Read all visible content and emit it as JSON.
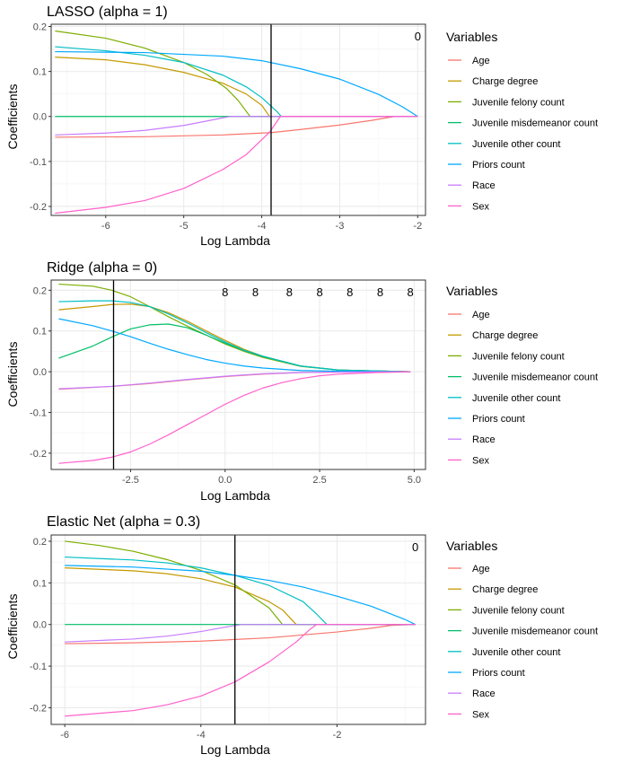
{
  "legend_title": "Variables",
  "variables": [
    "Age",
    "Charge degree",
    "Juvenile felony count",
    "Juvenile misdemeanor count",
    "Juvenile other count",
    "Priors count",
    "Race",
    "Sex"
  ],
  "colors": [
    "#F8766D",
    "#C49A00",
    "#7CAE00",
    "#00BE67",
    "#00BFC4",
    "#00A9FF",
    "#C77CFF",
    "#FF61CC"
  ],
  "chart_data": [
    {
      "type": "line",
      "title": "LASSO (alpha = 1)",
      "xlabel": "Log Lambda",
      "ylabel": "Coefficients",
      "xlim": [
        -6.7,
        -1.9
      ],
      "ylim": [
        -0.22,
        0.205
      ],
      "xticks": [
        -6,
        -5,
        -4,
        -3,
        -2
      ],
      "xtick_labels": [
        "-6",
        "-5",
        "-4",
        "-3",
        "-2"
      ],
      "yticks": [
        -0.2,
        -0.1,
        0.0,
        0.1,
        0.2
      ],
      "ytick_labels": [
        "-0.2",
        "-0.1",
        "0.0",
        "0.1",
        "0.2"
      ],
      "vline": -3.88,
      "top_x": [
        -2.0
      ],
      "top_labels": [
        "0"
      ],
      "series": [
        {
          "name": "Age",
          "x": [
            -6.65,
            -5.5,
            -4.5,
            -3.88,
            -3.5,
            -3.0,
            -2.6,
            -2.3,
            -2.0
          ],
          "values": [
            -0.046,
            -0.045,
            -0.041,
            -0.036,
            -0.029,
            -0.019,
            -0.009,
            0.0,
            0.0
          ]
        },
        {
          "name": "Charge degree",
          "x": [
            -6.65,
            -6.0,
            -5.5,
            -5.0,
            -4.5,
            -4.2,
            -4.0,
            -3.9,
            -2.0
          ],
          "values": [
            0.132,
            0.126,
            0.115,
            0.098,
            0.074,
            0.05,
            0.025,
            0.0,
            0.0
          ]
        },
        {
          "name": "Juvenile felony count",
          "x": [
            -6.65,
            -6.0,
            -5.5,
            -5.0,
            -4.7,
            -4.45,
            -4.3,
            -4.15,
            -2.0
          ],
          "values": [
            0.19,
            0.174,
            0.152,
            0.12,
            0.093,
            0.062,
            0.035,
            0.0,
            0.0
          ]
        },
        {
          "name": "Juvenile misdemeanor count",
          "x": [
            -6.65,
            -4.0,
            -2.0
          ],
          "values": [
            0.0,
            0.0,
            0.0
          ]
        },
        {
          "name": "Juvenile other count",
          "x": [
            -6.65,
            -6.0,
            -5.5,
            -5.0,
            -4.5,
            -4.2,
            -4.0,
            -3.8,
            -3.75,
            -2.0
          ],
          "values": [
            0.155,
            0.146,
            0.136,
            0.12,
            0.092,
            0.066,
            0.042,
            0.01,
            0.0,
            0.0
          ]
        },
        {
          "name": "Priors count",
          "x": [
            -6.65,
            -5.5,
            -4.5,
            -4.0,
            -3.5,
            -3.0,
            -2.5,
            -2.2,
            -2.0
          ],
          "values": [
            0.144,
            0.142,
            0.134,
            0.124,
            0.106,
            0.083,
            0.049,
            0.022,
            0.0
          ]
        },
        {
          "name": "Race",
          "x": [
            -6.65,
            -6.0,
            -5.5,
            -5.0,
            -4.7,
            -4.5,
            -4.4,
            -2.0
          ],
          "values": [
            -0.041,
            -0.037,
            -0.031,
            -0.02,
            -0.01,
            -0.003,
            0.0,
            0.0
          ]
        },
        {
          "name": "Sex",
          "x": [
            -6.65,
            -6.0,
            -5.5,
            -5.0,
            -4.5,
            -4.2,
            -3.9,
            -3.82,
            -3.76,
            -2.0
          ],
          "values": [
            -0.215,
            -0.202,
            -0.187,
            -0.16,
            -0.118,
            -0.085,
            -0.035,
            -0.015,
            0.0,
            0.0
          ]
        }
      ]
    },
    {
      "type": "line",
      "title": "Ridge (alpha = 0)",
      "xlabel": "Log Lambda",
      "ylabel": "Coefficients",
      "xlim": [
        -4.6,
        5.3
      ],
      "ylim": [
        -0.24,
        0.225
      ],
      "xticks": [
        -2.5,
        0.0,
        2.5,
        5.0
      ],
      "xtick_labels": [
        "-2.5",
        "0.0",
        "2.5",
        "5.0"
      ],
      "yticks": [
        -0.2,
        -0.1,
        0.0,
        0.1,
        0.2
      ],
      "ytick_labels": [
        "-0.2",
        "-0.1",
        "0.0",
        "0.1",
        "0.2"
      ],
      "vline": -2.95,
      "top_x": [
        0.0,
        0.8,
        1.7,
        2.5,
        3.3,
        4.1,
        4.9
      ],
      "top_labels": [
        "8",
        "8",
        "8",
        "8",
        "8",
        "8",
        "8"
      ],
      "series": [
        {
          "name": "Age",
          "x": [
            -4.4,
            -3.0,
            -2.0,
            -1.0,
            0.0,
            1.0,
            2.0,
            3.0,
            4.9
          ],
          "values": [
            -0.043,
            -0.036,
            -0.029,
            -0.02,
            -0.012,
            -0.006,
            -0.002,
            -0.001,
            0.0
          ]
        },
        {
          "name": "Charge degree",
          "x": [
            -4.4,
            -3.5,
            -3.0,
            -2.5,
            -2.0,
            -1.5,
            -1.0,
            -0.5,
            0.0,
            0.5,
            1.0,
            2.0,
            3.0,
            4.9
          ],
          "values": [
            0.152,
            0.16,
            0.165,
            0.166,
            0.16,
            0.145,
            0.124,
            0.1,
            0.077,
            0.055,
            0.038,
            0.014,
            0.004,
            0.0
          ]
        },
        {
          "name": "Juvenile felony count",
          "x": [
            -4.4,
            -3.5,
            -3.0,
            -2.5,
            -2.0,
            -1.5,
            -1.0,
            -0.5,
            0.0,
            0.5,
            1.0,
            2.0,
            3.0,
            4.9
          ],
          "values": [
            0.215,
            0.21,
            0.2,
            0.184,
            0.16,
            0.135,
            0.112,
            0.09,
            0.068,
            0.05,
            0.035,
            0.013,
            0.004,
            0.0
          ]
        },
        {
          "name": "Juvenile misdemeanor count",
          "x": [
            -4.4,
            -3.5,
            -3.0,
            -2.5,
            -2.0,
            -1.5,
            -1.0,
            -0.5,
            0.0,
            0.5,
            1.0,
            2.0,
            3.0,
            4.9
          ],
          "values": [
            0.033,
            0.063,
            0.085,
            0.105,
            0.115,
            0.117,
            0.108,
            0.09,
            0.07,
            0.052,
            0.037,
            0.014,
            0.004,
            0.0
          ]
        },
        {
          "name": "Juvenile other count",
          "x": [
            -4.4,
            -3.5,
            -3.0,
            -2.5,
            -2.0,
            -1.5,
            -1.0,
            -0.5,
            0.0,
            0.5,
            1.0,
            2.0,
            3.0,
            4.9
          ],
          "values": [
            0.172,
            0.174,
            0.174,
            0.17,
            0.16,
            0.142,
            0.12,
            0.096,
            0.073,
            0.053,
            0.038,
            0.014,
            0.004,
            0.0
          ]
        },
        {
          "name": "Priors count",
          "x": [
            -4.4,
            -3.5,
            -3.0,
            -2.5,
            -2.0,
            -1.5,
            -1.0,
            -0.5,
            0.0,
            0.5,
            1.0,
            2.0,
            3.0,
            4.9
          ],
          "values": [
            0.13,
            0.113,
            0.1,
            0.086,
            0.07,
            0.055,
            0.042,
            0.03,
            0.021,
            0.014,
            0.009,
            0.003,
            0.001,
            0.0
          ]
        },
        {
          "name": "Race",
          "x": [
            -4.4,
            -3.0,
            -2.0,
            -1.0,
            0.0,
            1.0,
            2.0,
            3.0,
            4.9
          ],
          "values": [
            -0.042,
            -0.036,
            -0.028,
            -0.019,
            -0.011,
            -0.005,
            -0.002,
            -0.001,
            0.0
          ]
        },
        {
          "name": "Sex",
          "x": [
            -4.4,
            -3.5,
            -3.0,
            -2.5,
            -2.0,
            -1.5,
            -1.0,
            -0.5,
            0.0,
            0.5,
            1.0,
            1.5,
            2.0,
            2.5,
            3.0,
            4.0,
            4.9
          ],
          "values": [
            -0.225,
            -0.218,
            -0.21,
            -0.197,
            -0.178,
            -0.155,
            -0.13,
            -0.105,
            -0.08,
            -0.058,
            -0.04,
            -0.027,
            -0.017,
            -0.01,
            -0.006,
            -0.002,
            0.0
          ]
        }
      ]
    },
    {
      "type": "line",
      "title": "Elastic Net (alpha = 0.3)",
      "xlabel": "Log Lambda",
      "ylabel": "Coefficients",
      "xlim": [
        -6.2,
        -0.7
      ],
      "ylim": [
        -0.24,
        0.215
      ],
      "xticks": [
        -6,
        -4,
        -2
      ],
      "xtick_labels": [
        "-6",
        "-4",
        "-2"
      ],
      "yticks": [
        -0.2,
        -0.1,
        0.0,
        0.1,
        0.2
      ],
      "ytick_labels": [
        "-0.2",
        "-0.1",
        "0.0",
        "0.1",
        "0.2"
      ],
      "vline": -3.5,
      "top_x": [
        -0.85
      ],
      "top_labels": [
        "0"
      ],
      "series": [
        {
          "name": "Age",
          "x": [
            -6.0,
            -5.0,
            -4.0,
            -3.0,
            -2.0,
            -1.5,
            -1.2,
            -0.85
          ],
          "values": [
            -0.046,
            -0.044,
            -0.04,
            -0.032,
            -0.018,
            -0.009,
            -0.002,
            0.0
          ]
        },
        {
          "name": "Charge degree",
          "x": [
            -6.0,
            -5.0,
            -4.5,
            -4.0,
            -3.5,
            -3.0,
            -2.8,
            -2.6,
            -0.85
          ],
          "values": [
            0.136,
            0.129,
            0.122,
            0.11,
            0.09,
            0.055,
            0.035,
            0.0,
            0.0
          ]
        },
        {
          "name": "Juvenile felony count",
          "x": [
            -6.0,
            -5.5,
            -5.0,
            -4.5,
            -4.0,
            -3.5,
            -3.0,
            -2.8,
            -0.85
          ],
          "values": [
            0.2,
            0.19,
            0.176,
            0.156,
            0.13,
            0.095,
            0.04,
            0.0,
            0.0
          ]
        },
        {
          "name": "Juvenile misdemeanor count",
          "x": [
            -6.0,
            -0.85
          ],
          "values": [
            0.0,
            0.0
          ]
        },
        {
          "name": "Juvenile other count",
          "x": [
            -6.0,
            -5.0,
            -4.5,
            -4.0,
            -3.5,
            -3.0,
            -2.5,
            -2.3,
            -2.15,
            -0.85
          ],
          "values": [
            0.162,
            0.155,
            0.148,
            0.136,
            0.118,
            0.094,
            0.055,
            0.025,
            0.0,
            0.0
          ]
        },
        {
          "name": "Priors count",
          "x": [
            -6.0,
            -5.0,
            -4.0,
            -3.5,
            -3.0,
            -2.5,
            -2.0,
            -1.5,
            -1.0,
            -0.85
          ],
          "values": [
            0.142,
            0.138,
            0.128,
            0.118,
            0.106,
            0.09,
            0.068,
            0.044,
            0.012,
            0.0
          ]
        },
        {
          "name": "Race",
          "x": [
            -6.0,
            -5.0,
            -4.5,
            -4.0,
            -3.7,
            -3.4,
            -0.85
          ],
          "values": [
            -0.042,
            -0.035,
            -0.028,
            -0.017,
            -0.008,
            0.0,
            0.0
          ]
        },
        {
          "name": "Sex",
          "x": [
            -6.0,
            -5.0,
            -4.5,
            -4.0,
            -3.5,
            -3.0,
            -2.6,
            -2.4,
            -2.3,
            -0.85
          ],
          "values": [
            -0.22,
            -0.207,
            -0.193,
            -0.172,
            -0.138,
            -0.09,
            -0.042,
            -0.012,
            0.0,
            0.0
          ]
        }
      ]
    }
  ]
}
